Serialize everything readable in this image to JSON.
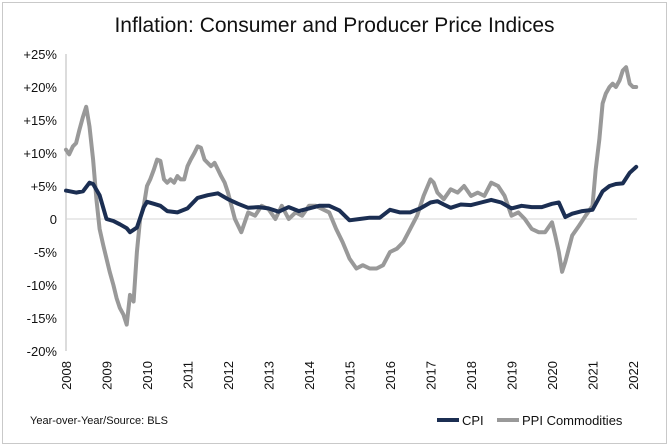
{
  "chart_data": {
    "type": "line",
    "title": "Inflation: Consumer and Producer Price Indices",
    "source_note": "Year-over-Year/Source: BLS",
    "x_tick_labels": [
      "2008",
      "2009",
      "2010",
      "2011",
      "2012",
      "2013",
      "2014",
      "2015",
      "2016",
      "2017",
      "2018",
      "2019",
      "2020",
      "2021",
      "2022"
    ],
    "y_tick_labels": [
      "+25%",
      "+20%",
      "+15%",
      "+10%",
      "+5%",
      "0",
      "-5%",
      "-10%",
      "-15%",
      "-20%"
    ],
    "ylim": [
      -20,
      25
    ],
    "xlim": [
      2008,
      2022.1
    ],
    "grid": false,
    "legend_position": "bottom-right",
    "legend": [
      "CPI",
      "PPI Commodities"
    ],
    "colors": {
      "CPI": "#1b2e52",
      "PPI Commodities": "#999999"
    },
    "series": [
      {
        "name": "CPI",
        "x": [
          2008.0,
          2008.25,
          2008.42,
          2008.58,
          2008.67,
          2008.83,
          2009.0,
          2009.17,
          2009.33,
          2009.5,
          2009.58,
          2009.75,
          2009.92,
          2010.0,
          2010.17,
          2010.33,
          2010.5,
          2010.75,
          2011.0,
          2011.25,
          2011.5,
          2011.75,
          2012.0,
          2012.25,
          2012.5,
          2012.75,
          2013.0,
          2013.25,
          2013.5,
          2013.75,
          2014.0,
          2014.25,
          2014.5,
          2014.75,
          2015.0,
          2015.25,
          2015.5,
          2015.75,
          2016.0,
          2016.25,
          2016.5,
          2016.75,
          2017.0,
          2017.17,
          2017.33,
          2017.5,
          2017.75,
          2018.0,
          2018.25,
          2018.5,
          2018.75,
          2019.0,
          2019.25,
          2019.5,
          2019.75,
          2020.0,
          2020.17,
          2020.33,
          2020.5,
          2020.75,
          2021.0,
          2021.25,
          2021.42,
          2021.58,
          2021.75,
          2021.92,
          2022.08
        ],
        "values": [
          4.3,
          4.0,
          4.2,
          5.5,
          5.3,
          3.6,
          0.0,
          -0.3,
          -0.8,
          -1.4,
          -2.0,
          -1.3,
          1.8,
          2.6,
          2.3,
          2.0,
          1.2,
          1.0,
          1.6,
          3.2,
          3.6,
          3.9,
          3.0,
          2.3,
          1.7,
          1.8,
          1.6,
          1.1,
          1.8,
          1.2,
          1.6,
          2.0,
          2.0,
          1.3,
          -0.2,
          0.0,
          0.2,
          0.2,
          1.4,
          1.0,
          1.0,
          1.6,
          2.5,
          2.7,
          2.2,
          1.7,
          2.2,
          2.1,
          2.5,
          2.9,
          2.5,
          1.6,
          2.0,
          1.8,
          1.8,
          2.3,
          2.5,
          0.3,
          0.8,
          1.2,
          1.4,
          4.2,
          5.0,
          5.3,
          5.4,
          7.0,
          7.9
        ]
      },
      {
        "name": "PPI Commodities",
        "x": [
          2008.0,
          2008.08,
          2008.17,
          2008.25,
          2008.33,
          2008.42,
          2008.5,
          2008.58,
          2008.67,
          2008.75,
          2008.83,
          2008.92,
          2009.0,
          2009.08,
          2009.17,
          2009.25,
          2009.33,
          2009.42,
          2009.5,
          2009.58,
          2009.67,
          2009.75,
          2009.83,
          2009.92,
          2010.0,
          2010.08,
          2010.17,
          2010.25,
          2010.33,
          2010.42,
          2010.5,
          2010.58,
          2010.67,
          2010.75,
          2010.83,
          2010.92,
          2011.0,
          2011.08,
          2011.17,
          2011.25,
          2011.33,
          2011.42,
          2011.5,
          2011.58,
          2011.67,
          2011.75,
          2011.83,
          2011.92,
          2012.0,
          2012.17,
          2012.33,
          2012.5,
          2012.67,
          2012.83,
          2013.0,
          2013.17,
          2013.33,
          2013.5,
          2013.67,
          2013.83,
          2014.0,
          2014.17,
          2014.33,
          2014.5,
          2014.67,
          2014.83,
          2015.0,
          2015.17,
          2015.33,
          2015.5,
          2015.67,
          2015.83,
          2016.0,
          2016.17,
          2016.33,
          2016.5,
          2016.67,
          2016.83,
          2017.0,
          2017.08,
          2017.17,
          2017.33,
          2017.5,
          2017.67,
          2017.83,
          2018.0,
          2018.17,
          2018.33,
          2018.5,
          2018.67,
          2018.83,
          2019.0,
          2019.17,
          2019.33,
          2019.5,
          2019.67,
          2019.83,
          2020.0,
          2020.08,
          2020.17,
          2020.25,
          2020.33,
          2020.5,
          2020.67,
          2020.83,
          2021.0,
          2021.08,
          2021.17,
          2021.25,
          2021.33,
          2021.42,
          2021.5,
          2021.58,
          2021.67,
          2021.75,
          2021.83,
          2021.92,
          2022.0,
          2022.08
        ],
        "values": [
          10.5,
          9.8,
          11.0,
          11.5,
          13.5,
          15.5,
          17.0,
          14.0,
          9.0,
          3.0,
          -1.5,
          -4.0,
          -6.0,
          -8.0,
          -10.0,
          -12.0,
          -13.5,
          -14.5,
          -16.0,
          -11.5,
          -12.5,
          -5.0,
          0.0,
          2.0,
          5.0,
          6.0,
          7.5,
          9.0,
          8.8,
          6.0,
          5.5,
          6.0,
          5.5,
          6.5,
          6.0,
          6.0,
          8.0,
          9.0,
          10.0,
          11.0,
          10.8,
          9.0,
          8.5,
          8.0,
          8.5,
          7.5,
          6.5,
          5.5,
          4.0,
          0.0,
          -2.0,
          1.0,
          0.5,
          2.0,
          1.5,
          0.0,
          2.0,
          0.0,
          1.0,
          0.5,
          2.0,
          2.0,
          1.5,
          1.0,
          -1.5,
          -3.5,
          -6.0,
          -7.5,
          -7.0,
          -7.5,
          -7.5,
          -7.0,
          -5.0,
          -4.5,
          -3.5,
          -1.5,
          0.5,
          3.5,
          6.0,
          5.5,
          4.0,
          3.0,
          4.5,
          4.0,
          5.0,
          3.5,
          4.0,
          3.5,
          5.5,
          5.0,
          3.5,
          0.5,
          1.0,
          0.0,
          -1.5,
          -2.0,
          -2.0,
          -0.5,
          -2.5,
          -5.0,
          -8.0,
          -6.5,
          -2.5,
          -1.0,
          0.5,
          2.0,
          7.5,
          12.0,
          17.5,
          19.0,
          20.0,
          20.5,
          20.0,
          21.0,
          22.5,
          23.0,
          20.5,
          20.0,
          20.0
        ]
      }
    ]
  }
}
